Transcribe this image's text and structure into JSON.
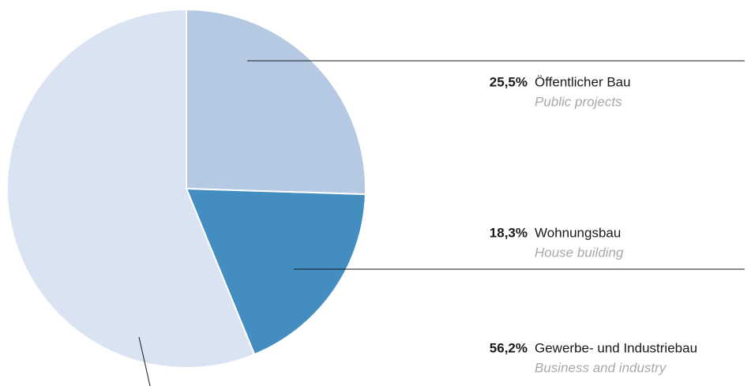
{
  "chart_data": {
    "type": "pie",
    "categories": [
      "Öffentlicher Bau",
      "Wohnungsbau",
      "Gewerbe- und Industriebau"
    ],
    "categories_en": [
      "Public projects",
      "House building",
      "Business and industry"
    ],
    "values": [
      25.5,
      18.3,
      56.2
    ],
    "value_labels": [
      "25,5%",
      "18,3%",
      "56,2%"
    ],
    "colors": [
      "#b5c9e3",
      "#438dc0",
      "#d9e3f1"
    ]
  }
}
